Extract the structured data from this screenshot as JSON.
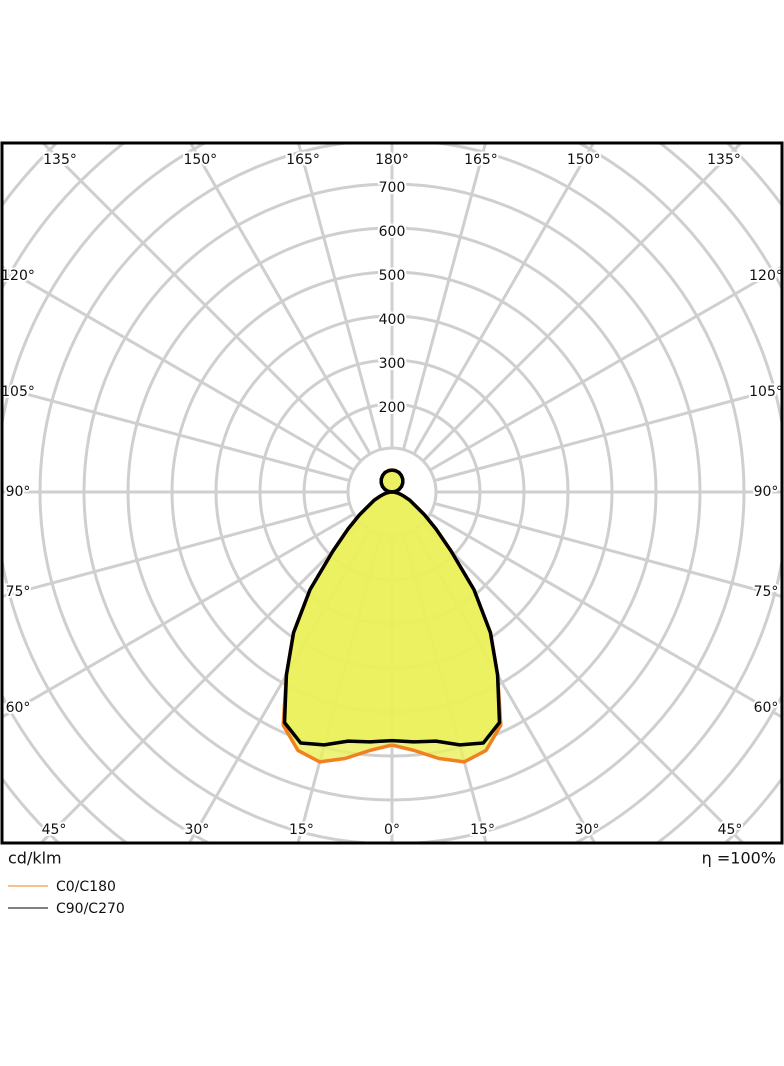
{
  "chart_data": {
    "type": "polar",
    "rlim": [
      0,
      1200
    ],
    "rticks": [
      200,
      300,
      400,
      500,
      600,
      700
    ],
    "grid_step": 100,
    "angle_ticks": [
      {
        "value": -165,
        "label": "165°"
      },
      {
        "value": -150,
        "label": "150°"
      },
      {
        "value": -135,
        "label": "135°"
      },
      {
        "value": -120,
        "label": "120°"
      },
      {
        "value": -105,
        "label": "105°"
      },
      {
        "value": -90,
        "label": "90°"
      },
      {
        "value": -75,
        "label": "75°"
      },
      {
        "value": -60,
        "label": "60°"
      },
      {
        "value": -45,
        "label": "45°"
      },
      {
        "value": -30,
        "label": "30°"
      },
      {
        "value": -15,
        "label": "15°"
      },
      {
        "value": 0,
        "label": "0°"
      },
      {
        "value": 15,
        "label": "15°"
      },
      {
        "value": 30,
        "label": "30°"
      },
      {
        "value": 45,
        "label": "45°"
      },
      {
        "value": 60,
        "label": "60°"
      },
      {
        "value": 75,
        "label": "75°"
      },
      {
        "value": 90,
        "label": "90°"
      },
      {
        "value": 105,
        "label": "105°"
      },
      {
        "value": 120,
        "label": "120°"
      },
      {
        "value": 135,
        "label": "135°"
      },
      {
        "value": 150,
        "label": "150°"
      },
      {
        "value": 165,
        "label": "165°"
      },
      {
        "value": 180,
        "label": "180°"
      }
    ],
    "x": [
      0,
      5,
      10,
      15,
      20,
      25,
      30,
      35,
      40,
      45,
      50,
      55,
      60,
      65,
      70,
      75,
      80,
      85,
      90,
      100,
      110,
      120,
      130,
      140,
      150,
      160,
      170,
      180
    ],
    "series": [
      {
        "name": "C0/C180",
        "color": "#f08020",
        "values": [
          575,
          590,
          615,
          635,
          625,
          585,
          480,
          390,
          290,
          190,
          130,
          90,
          60,
          45,
          30,
          20,
          12,
          5,
          0,
          9,
          17,
          25,
          32,
          38,
          43,
          47,
          49,
          50
        ]
      },
      {
        "name": "C90/C270",
        "color": "#000000",
        "values": [
          565,
          570,
          575,
          595,
          607,
          578,
          480,
          390,
          290,
          190,
          130,
          90,
          60,
          45,
          30,
          20,
          12,
          5,
          0,
          9,
          17,
          25,
          32,
          38,
          43,
          47,
          49,
          50
        ]
      }
    ],
    "fill_color": "#eaf05a",
    "unit_label": "cd/klm",
    "efficiency_label": "η =100%"
  }
}
